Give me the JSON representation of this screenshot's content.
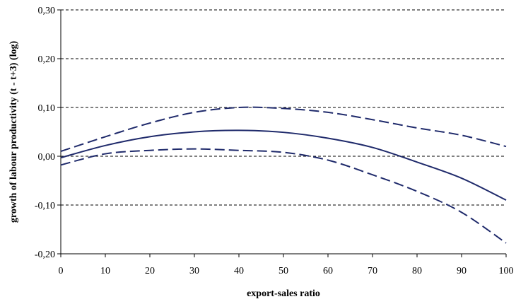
{
  "chart_data": {
    "type": "line",
    "title": "",
    "xlabel": "export-sales ratio",
    "ylabel": "growth of labour productivity (t - t+3) (log)",
    "xlim": [
      0,
      100
    ],
    "ylim": [
      -0.2,
      0.3
    ],
    "x_ticks": [
      0,
      10,
      20,
      30,
      40,
      50,
      60,
      70,
      80,
      90,
      100
    ],
    "x_tick_labels": [
      "0",
      "10",
      "20",
      "30",
      "40",
      "50",
      "60",
      "70",
      "80",
      "90",
      "100"
    ],
    "y_ticks": [
      -0.2,
      -0.1,
      0.0,
      0.1,
      0.2,
      0.3
    ],
    "y_tick_labels": [
      "-0,20",
      "-0,10",
      "0,00",
      "0,10",
      "0,20",
      "0,30"
    ],
    "grid": "horizontal dashed",
    "legend": "none",
    "color": "#1f2a6b",
    "x": [
      0,
      10,
      20,
      30,
      40,
      50,
      60,
      70,
      80,
      90,
      100
    ],
    "series": [
      {
        "style": "dashed",
        "values": [
          0.01,
          0.04,
          0.068,
          0.09,
          0.1,
          0.098,
          0.09,
          0.075,
          0.058,
          0.043,
          0.02
        ]
      },
      {
        "style": "solid",
        "values": [
          -0.003,
          0.022,
          0.04,
          0.05,
          0.053,
          0.049,
          0.037,
          0.018,
          -0.012,
          -0.045,
          -0.09
        ]
      },
      {
        "style": "dashed",
        "values": [
          -0.018,
          0.005,
          0.012,
          0.015,
          0.012,
          0.008,
          -0.008,
          -0.038,
          -0.072,
          -0.115,
          -0.178
        ]
      }
    ]
  }
}
